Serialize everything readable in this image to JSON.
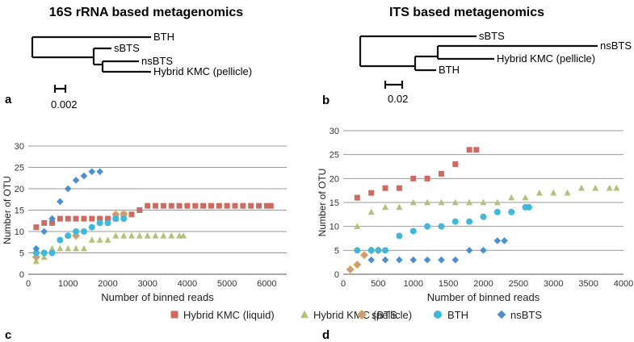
{
  "panels": {
    "a": {
      "letter": "a",
      "title": "16S rRNA based metagenomics",
      "taxa": [
        "BTH",
        "sBTS",
        "nsBTS",
        "Hybrid KMC (pellicle)"
      ],
      "scale_label": "0.002"
    },
    "b": {
      "letter": "b",
      "title": "ITS based metagenomics",
      "taxa": [
        "sBTS",
        "nsBTS",
        "Hybrid KMC (pellicle)",
        "BTH"
      ],
      "scale_label": "0.02"
    },
    "c": {
      "letter": "c"
    },
    "d": {
      "letter": "d"
    }
  },
  "legend": {
    "items": [
      {
        "label": "Hybrid KMC (liquid)",
        "marker": "square",
        "color": "#cd6b63"
      },
      {
        "label": "Hybrid KMC (pellicle)",
        "marker": "triangle",
        "color": "#b3c27a"
      },
      {
        "label": "sBTS",
        "marker": "diamond",
        "color": "#c89a94",
        "stroke": "#e1a534"
      },
      {
        "label": "BTH",
        "marker": "circle",
        "color": "#3fb8dc"
      },
      {
        "label": "nsBTS",
        "marker": "diamond",
        "color": "#4a8fcf"
      }
    ]
  },
  "chart_data": [
    {
      "id": "c",
      "type": "scatter",
      "title": "",
      "xlabel": "Number of binned reads",
      "ylabel": "Number of OTU",
      "xlim": [
        0,
        6500
      ],
      "ylim": [
        0,
        30
      ],
      "xticks": [
        0,
        1000,
        2000,
        3000,
        4000,
        5000,
        6000
      ],
      "yticks": [
        0,
        5,
        10,
        15,
        20,
        25,
        30
      ],
      "grid": true,
      "series": [
        {
          "name": "Hybrid KMC (liquid)",
          "x": [
            200,
            400,
            600,
            800,
            1000,
            1200,
            1400,
            1600,
            1800,
            2000,
            2200,
            2400,
            2600,
            2800,
            3000,
            3200,
            3400,
            3600,
            3800,
            4000,
            4200,
            4400,
            4600,
            4800,
            5000,
            5200,
            5400,
            5600,
            5800,
            6000,
            6100
          ],
          "y": [
            11,
            12,
            12,
            13,
            13,
            13,
            13,
            13,
            13,
            13,
            13,
            14,
            14,
            15,
            16,
            16,
            16,
            16,
            16,
            16,
            16,
            16,
            16,
            16,
            16,
            16,
            16,
            16,
            16,
            16,
            16
          ]
        },
        {
          "name": "Hybrid KMC (pellicle)",
          "x": [
            200,
            400,
            600,
            800,
            1000,
            1200,
            1400,
            1600,
            1800,
            2000,
            2200,
            2400,
            2600,
            2800,
            3000,
            3200,
            3400,
            3600,
            3800,
            3900
          ],
          "y": [
            3,
            4,
            6,
            6,
            6,
            6,
            6,
            8,
            8,
            8,
            9,
            9,
            9,
            9,
            9,
            9,
            9,
            9,
            9,
            9
          ]
        },
        {
          "name": "sBTS",
          "x": [
            200,
            1200,
            2200,
            2400
          ],
          "y": [
            4,
            9,
            14,
            14
          ]
        },
        {
          "name": "BTH",
          "x": [
            200,
            400,
            600,
            800,
            1000,
            1200,
            1400,
            1600,
            1800,
            2000,
            2200,
            2400
          ],
          "y": [
            5,
            5,
            5,
            8,
            9,
            10,
            10,
            11,
            12,
            12,
            13,
            13
          ]
        },
        {
          "name": "nsBTS",
          "x": [
            200,
            400,
            600,
            800,
            1000,
            1200,
            1400,
            1600,
            1800
          ],
          "y": [
            6,
            10,
            13,
            17,
            20,
            22,
            23,
            24,
            24
          ]
        }
      ]
    },
    {
      "id": "d",
      "type": "scatter",
      "title": "",
      "xlabel": "Number of binned reads",
      "ylabel": "Number of OTU",
      "xlim": [
        0,
        4000
      ],
      "ylim": [
        0,
        30
      ],
      "xticks": [
        0,
        500,
        1000,
        1500,
        2000,
        2500,
        3000,
        3500,
        4000
      ],
      "yticks": [
        0,
        5,
        10,
        15,
        20,
        25,
        30
      ],
      "grid": true,
      "series": [
        {
          "name": "Hybrid KMC (liquid)",
          "x": [
            200,
            400,
            600,
            800,
            1000,
            1200,
            1400,
            1600,
            1800,
            1900
          ],
          "y": [
            16,
            17,
            18,
            18,
            20,
            20,
            21,
            23,
            26,
            26
          ]
        },
        {
          "name": "Hybrid KMC (pellicle)",
          "x": [
            200,
            400,
            600,
            800,
            1000,
            1200,
            1400,
            1600,
            1800,
            2000,
            2200,
            2400,
            2600,
            2800,
            3000,
            3200,
            3400,
            3600,
            3800,
            3900
          ],
          "y": [
            10,
            13,
            14,
            14,
            15,
            15,
            15,
            15,
            15,
            15,
            15,
            16,
            16,
            17,
            17,
            17,
            18,
            18,
            18,
            18
          ]
        },
        {
          "name": "sBTS",
          "x": [
            100,
            200,
            300,
            400,
            500
          ],
          "y": [
            1,
            2,
            4,
            5,
            5
          ]
        },
        {
          "name": "BTH",
          "x": [
            200,
            400,
            500,
            600,
            800,
            1000,
            1200,
            1400,
            1600,
            1800,
            2000,
            2200,
            2400,
            2600,
            2650
          ],
          "y": [
            5,
            5,
            5,
            5,
            8,
            9,
            10,
            10,
            11,
            11,
            12,
            13,
            13,
            14,
            14
          ]
        },
        {
          "name": "nsBTS",
          "x": [
            400,
            600,
            800,
            1000,
            1200,
            1400,
            1600,
            1800,
            2000,
            2200,
            2300
          ],
          "y": [
            3,
            3,
            3,
            3,
            3,
            3,
            3,
            5,
            5,
            7,
            7
          ]
        }
      ]
    }
  ]
}
